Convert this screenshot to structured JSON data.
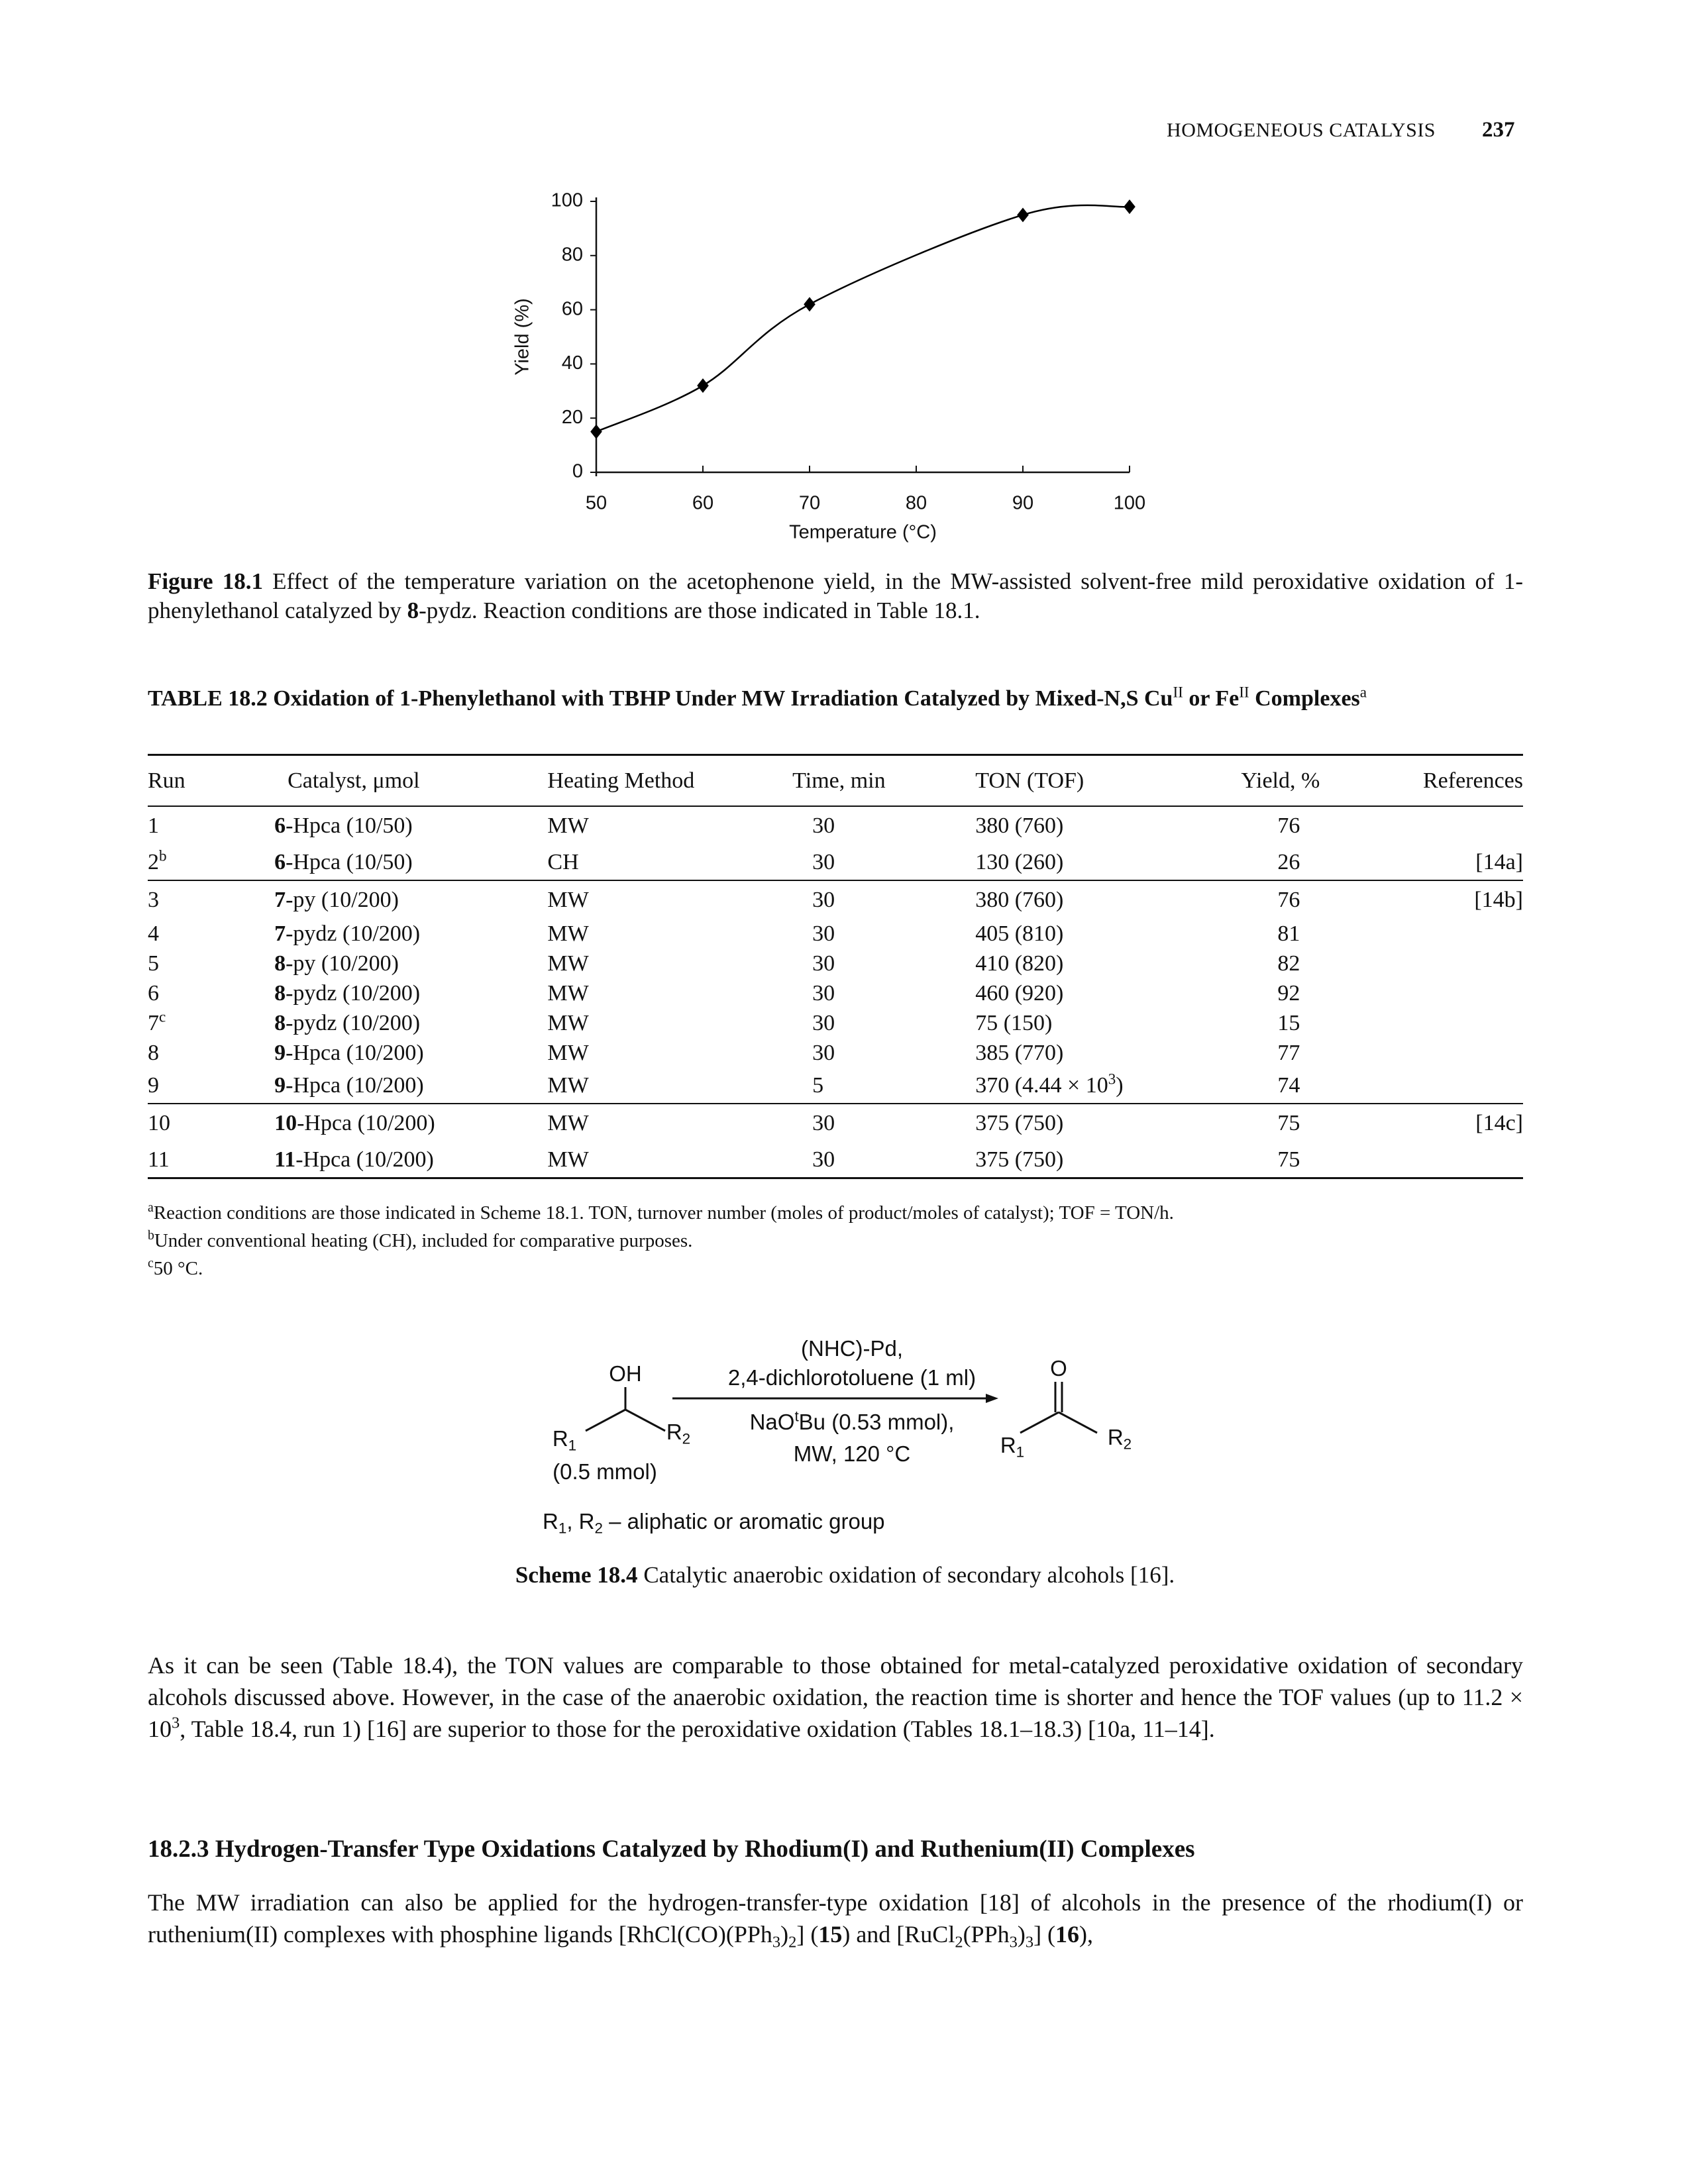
{
  "header": {
    "running_title": "HOMOGENEOUS CATALYSIS",
    "page_number": "237"
  },
  "chart_data": {
    "type": "line",
    "x": [
      50,
      60,
      70,
      90,
      100
    ],
    "values": [
      15,
      32,
      62,
      95,
      98
    ],
    "color": "#000000",
    "marker": "diamond",
    "smooth": true,
    "xlabel": "Temperature (°C)",
    "ylabel": "Yield (%)",
    "xlim": [
      50,
      100
    ],
    "ylim": [
      0,
      100
    ],
    "xticks": [
      50,
      60,
      70,
      80,
      90,
      100
    ],
    "yticks": [
      0,
      20,
      40,
      60,
      80,
      100
    ]
  },
  "figure_caption": [
    {
      "text": "Figure 18.1",
      "s": "b"
    },
    "  Effect of the temperature variation on the acetophenone yield, in the MW-assisted solvent-free mild peroxidative oxidation of 1-phenylethanol catalyzed by ",
    {
      "text": "8",
      "s": "b"
    },
    "-pydz. Reaction conditions are those indicated in Table 18.1."
  ],
  "table": {
    "title": [
      {
        "text": "TABLE 18.2",
        "s": "b"
      },
      "   ",
      {
        "text": "Oxidation of 1-Phenylethanol with TBHP Under MW Irradiation Catalyzed by Mixed-N,S Cu",
        "s": "b"
      },
      {
        "text": "II",
        "s": "sup"
      },
      {
        "text": " or Fe",
        "s": "b"
      },
      {
        "text": "II",
        "s": "sup"
      },
      {
        "text": " Complexes",
        "s": "b"
      },
      {
        "text": "a",
        "s": "sup"
      }
    ],
    "header": [
      "Run",
      "Catalyst, μmol",
      "Heating Method",
      "Time, min",
      "TON (TOF)",
      "Yield, %",
      "References"
    ],
    "groups": [
      [
        {
          "cells": [
            "1",
            [
              {
                "text": "6",
                "s": "b"
              },
              "-Hpca (10/50)"
            ],
            "MW",
            "30",
            "380 (760)",
            "76"
          ]
        },
        {
          "cells": [
            [
              "2",
              {
                "text": "b",
                "s": "sup"
              }
            ],
            [
              {
                "text": "6",
                "s": "b"
              },
              "-Hpca (10/50)"
            ],
            "CH",
            "30",
            "130 (260)",
            "26"
          ],
          "ref": "[14a]"
        }
      ],
      [
        {
          "cells": [
            "3",
            [
              {
                "text": "7",
                "s": "b"
              },
              "-py (10/200)"
            ],
            "MW",
            "30",
            "380 (760)",
            "76"
          ],
          "ref": "[14b]"
        },
        {
          "cells": [
            "4",
            [
              {
                "text": "7",
                "s": "b"
              },
              "-pydz (10/200)"
            ],
            "MW",
            "30",
            "405 (810)",
            "81"
          ]
        },
        {
          "cells": [
            "5",
            [
              {
                "text": "8",
                "s": "b"
              },
              "-py (10/200)"
            ],
            "MW",
            "30",
            "410 (820)",
            "82"
          ]
        },
        {
          "cells": [
            "6",
            [
              {
                "text": "8",
                "s": "b"
              },
              "-pydz (10/200)"
            ],
            "MW",
            "30",
            "460 (920)",
            "92"
          ]
        },
        {
          "cells": [
            [
              "7",
              {
                "text": "c",
                "s": "sup"
              }
            ],
            [
              {
                "text": "8",
                "s": "b"
              },
              "-pydz (10/200)"
            ],
            "MW",
            "30",
            "75 (150)",
            "15"
          ]
        },
        {
          "cells": [
            "8",
            [
              {
                "text": "9",
                "s": "b"
              },
              "-Hpca (10/200)"
            ],
            "MW",
            "30",
            "385 (770)",
            "77"
          ]
        },
        {
          "cells": [
            "9",
            [
              {
                "text": "9",
                "s": "b"
              },
              "-Hpca (10/200)"
            ],
            "MW",
            "5",
            [
              "370 (4.44 × 10",
              {
                "text": "3",
                "s": "sup"
              },
              ")"
            ],
            "74"
          ]
        }
      ],
      [
        {
          "cells": [
            "10",
            [
              {
                "text": "10",
                "s": "b"
              },
              "-Hpca (10/200)"
            ],
            "MW",
            "30",
            "375 (750)",
            "75"
          ],
          "ref": "[14c]"
        },
        {
          "cells": [
            "11",
            [
              {
                "text": "11",
                "s": "b"
              },
              "-Hpca (10/200)"
            ],
            "MW",
            "30",
            "375 (750)",
            "75"
          ]
        }
      ]
    ],
    "footnotes": [
      [
        {
          "text": "a",
          "s": "sup"
        },
        "Reaction conditions are those indicated in Scheme 18.1. TON, turnover number (moles of product/moles of catalyst); TOF = TON/h."
      ],
      [
        {
          "text": "b",
          "s": "sup"
        },
        "Under conventional heating (CH), included for comparative purposes."
      ],
      [
        {
          "text": "c",
          "s": "sup"
        },
        "50 °C."
      ]
    ]
  },
  "scheme": {
    "reactant_oh": "OH",
    "reactant_r1": [
      "R",
      {
        "text": "1",
        "s": "sub"
      }
    ],
    "reactant_r2": [
      "R",
      {
        "text": "2",
        "s": "sub"
      }
    ],
    "reactant_amount": "(0.5 mmol)",
    "above_arrow": [
      "(NHC)-Pd,",
      "2,4-dichlorotoluene (1 ml)"
    ],
    "below_arrow": [
      [
        "NaO",
        {
          "text": "t",
          "s": "sup"
        },
        "Bu (0.53 mmol),"
      ],
      "MW, 120 °C"
    ],
    "product_o": "O",
    "product_r1": [
      "R",
      {
        "text": "1",
        "s": "sub"
      }
    ],
    "product_r2": [
      "R",
      {
        "text": "2",
        "s": "sub"
      }
    ],
    "legend": [
      "R",
      {
        "text": "1",
        "s": "sub"
      },
      ", R",
      {
        "text": "2",
        "s": "sub"
      },
      " – aliphatic or aromatic group"
    ],
    "caption": [
      {
        "text": "Scheme 18.4",
        "s": "b"
      },
      "  Catalytic anaerobic oxidation of secondary alcohols [16]."
    ]
  },
  "body": {
    "paragraph_1": [
      "As it can be seen (Table 18.4), the TON values are comparable to those obtained for metal-catalyzed peroxidative oxidation of secondary alcohols discussed above. However, in the case of the anaerobic oxidation, the reaction time is shorter and hence the TOF values (up to 11.2 × 10",
      {
        "text": "3",
        "s": "sup"
      },
      ", Table 18.4, run 1) [16] are superior to those for the peroxidative oxidation (Tables 18.1–18.3) [10a, 11–14]."
    ],
    "section_heading": "18.2.3 Hydrogen-Transfer Type Oxidations Catalyzed by Rhodium(I) and Ruthenium(II) Complexes",
    "paragraph_2": [
      "The MW irradiation can also be applied for the hydrogen-transfer-type oxidation [18] of alcohols in the presence of the rhodium(I) or ruthenium(II) complexes with phosphine ligands [RhCl(CO)(PPh",
      {
        "text": "3",
        "s": "sub"
      },
      ")",
      {
        "text": "2",
        "s": "sub"
      },
      "] (",
      {
        "text": "15",
        "s": "b"
      },
      ") and [RuCl",
      {
        "text": "2",
        "s": "sub"
      },
      "(PPh",
      {
        "text": "3",
        "s": "sub"
      },
      ")",
      {
        "text": "3",
        "s": "sub"
      },
      "] (",
      {
        "text": "16",
        "s": "b"
      },
      "),"
    ]
  }
}
